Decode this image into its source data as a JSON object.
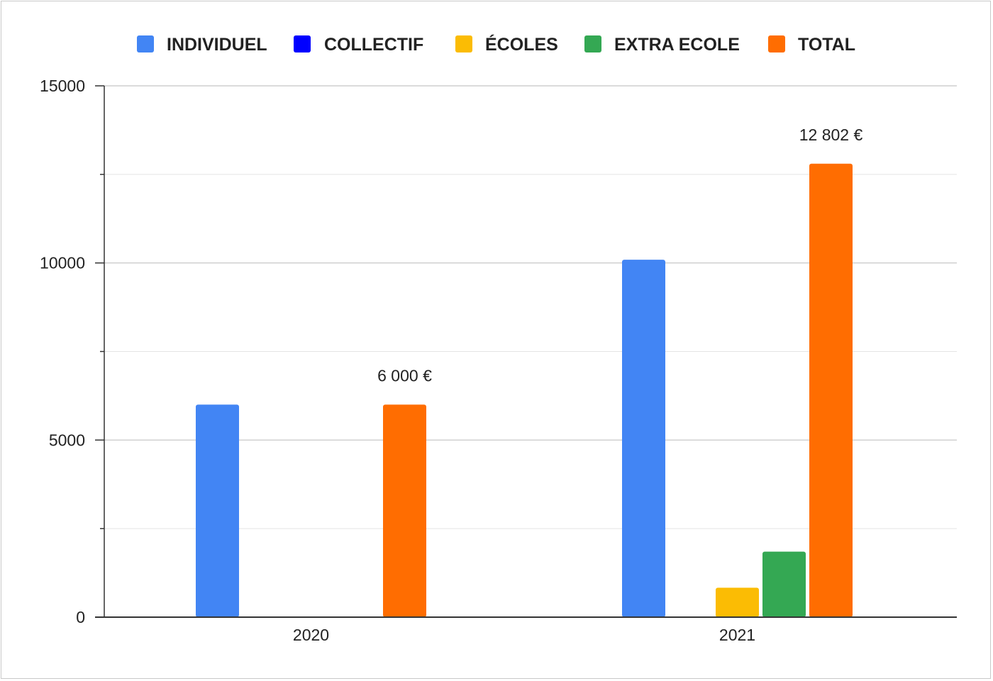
{
  "chart_data": {
    "type": "bar",
    "title": "",
    "xlabel": "",
    "ylabel": "",
    "categories": [
      "2020",
      "2021"
    ],
    "series": [
      {
        "name": "INDIVIDUEL",
        "color": "#4285f4",
        "values": [
          6000,
          10090
        ]
      },
      {
        "name": "COLLECTIF",
        "color": "#0000ff",
        "values": [
          0,
          0
        ]
      },
      {
        "name": "ÉCOLES",
        "color": "#fbbc04",
        "values": [
          0,
          830
        ]
      },
      {
        "name": "EXTRA ECOLE",
        "color": "#34a853",
        "values": [
          0,
          1850
        ]
      },
      {
        "name": "TOTAL",
        "color": "#ff6d01",
        "values": [
          6000,
          12802
        ]
      }
    ],
    "data_labels": {
      "series": "TOTAL",
      "labels": [
        "6 000 €",
        "12 802 €"
      ]
    },
    "ylim": [
      0,
      15000
    ],
    "y_ticks": [
      0,
      5000,
      10000,
      15000
    ],
    "y_tick_labels": [
      "0",
      "5000",
      "10000",
      "15000"
    ],
    "y_minor_step": 2500,
    "grid": true,
    "legend_position": "top"
  }
}
